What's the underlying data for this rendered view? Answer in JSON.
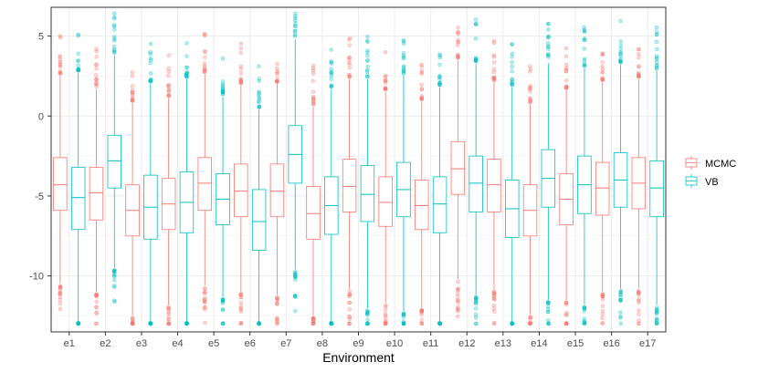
{
  "chart_data": {
    "type": "boxplot",
    "xlabel": "Environment",
    "ylabel": "",
    "ylim": [
      -13.5,
      6.8
    ],
    "yticks": [
      5,
      0,
      -5,
      -10
    ],
    "ytick_labels": [
      "5",
      "0",
      "-5",
      "-10"
    ],
    "grid": true,
    "legend_position": "right",
    "categories": [
      "e1",
      "e2",
      "e3",
      "e4",
      "e5",
      "e6",
      "e7",
      "e8",
      "e9",
      "e10",
      "e11",
      "e12",
      "e13",
      "e14",
      "e15",
      "e16",
      "e17"
    ],
    "series": [
      {
        "name": "MCMC",
        "color": "#F8766D",
        "stats": [
          {
            "min": -10.5,
            "q1": -5.9,
            "median": -4.3,
            "q3": -2.6,
            "max": 2.5
          },
          {
            "min": -11.0,
            "q1": -6.5,
            "median": -4.8,
            "q3": -3.2,
            "max": 1.7
          },
          {
            "min": -12.5,
            "q1": -7.5,
            "median": -5.9,
            "q3": -4.3,
            "max": 0.8
          },
          {
            "min": -11.8,
            "q1": -7.1,
            "median": -5.5,
            "q3": -3.9,
            "max": 1.1
          },
          {
            "min": -10.6,
            "q1": -5.9,
            "median": -4.2,
            "q3": -2.6,
            "max": 2.6
          },
          {
            "min": -11.0,
            "q1": -6.3,
            "median": -4.7,
            "q3": -3.0,
            "max": 1.9
          },
          {
            "min": -11.2,
            "q1": -6.3,
            "median": -4.7,
            "q3": -3.0,
            "max": 2.0
          },
          {
            "min": -12.5,
            "q1": -7.7,
            "median": -6.1,
            "q3": -4.4,
            "max": 0.6
          },
          {
            "min": -10.8,
            "q1": -6.0,
            "median": -4.4,
            "q3": -2.7,
            "max": 2.3
          },
          {
            "min": -11.7,
            "q1": -6.9,
            "median": -5.4,
            "q3": -3.8,
            "max": 1.5
          },
          {
            "min": -12.0,
            "q1": -7.1,
            "median": -5.6,
            "q3": -4.0,
            "max": 0.9
          },
          {
            "min": -10.2,
            "q1": -4.9,
            "median": -3.3,
            "q3": -1.6,
            "max": 3.5
          },
          {
            "min": -10.8,
            "q1": -6.0,
            "median": -4.3,
            "q3": -2.7,
            "max": 2.1
          },
          {
            "min": -12.4,
            "q1": -7.5,
            "median": -5.9,
            "q3": -4.3,
            "max": 0.7
          },
          {
            "min": -11.5,
            "q1": -6.8,
            "median": -5.2,
            "q3": -3.6,
            "max": 1.6
          },
          {
            "min": -11.0,
            "q1": -6.2,
            "median": -4.5,
            "q3": -2.9,
            "max": 2.1
          },
          {
            "min": -10.8,
            "q1": -5.8,
            "median": -4.2,
            "q3": -2.6,
            "max": 2.3
          }
        ]
      },
      {
        "name": "VB",
        "color": "#00BFC4",
        "stats": [
          {
            "min": -13.0,
            "q1": -7.1,
            "median": -5.1,
            "q3": -3.2,
            "max": 2.7
          },
          {
            "min": -9.5,
            "q1": -4.5,
            "median": -2.8,
            "q3": -1.2,
            "max": 3.8
          },
          {
            "min": -13.0,
            "q1": -7.7,
            "median": -5.7,
            "q3": -3.7,
            "max": 2.0
          },
          {
            "min": -13.0,
            "q1": -7.3,
            "median": -5.4,
            "q3": -3.5,
            "max": 2.3
          },
          {
            "min": -11.3,
            "q1": -6.8,
            "median": -5.2,
            "q3": -3.6,
            "max": 1.2
          },
          {
            "min": -13.0,
            "q1": -8.4,
            "median": -6.6,
            "q3": -4.6,
            "max": 0.4
          },
          {
            "min": -9.6,
            "q1": -4.2,
            "median": -2.4,
            "q3": -0.6,
            "max": 4.8
          },
          {
            "min": -13.0,
            "q1": -7.4,
            "median": -5.6,
            "q3": -3.8,
            "max": 1.7
          },
          {
            "min": -12.0,
            "q1": -6.6,
            "median": -4.9,
            "q3": -3.1,
            "max": 2.3
          },
          {
            "min": -12.2,
            "q1": -6.3,
            "median": -4.6,
            "q3": -2.9,
            "max": 2.5
          },
          {
            "min": -12.8,
            "q1": -7.3,
            "median": -5.5,
            "q3": -3.8,
            "max": 1.8
          },
          {
            "min": -11.2,
            "q1": -6.0,
            "median": -4.2,
            "q3": -2.5,
            "max": 3.3
          },
          {
            "min": -13.0,
            "q1": -7.6,
            "median": -5.8,
            "q3": -4.0,
            "max": 1.8
          },
          {
            "min": -11.5,
            "q1": -5.7,
            "median": -3.9,
            "q3": -2.1,
            "max": 3.3
          },
          {
            "min": -11.8,
            "q1": -6.1,
            "median": -4.3,
            "q3": -2.5,
            "max": 3.0
          },
          {
            "min": -10.8,
            "q1": -5.7,
            "median": -4.0,
            "q3": -2.3,
            "max": 3.2
          },
          {
            "min": -11.8,
            "q1": -6.3,
            "median": -4.5,
            "q3": -2.8,
            "max": 2.8
          }
        ]
      }
    ]
  }
}
